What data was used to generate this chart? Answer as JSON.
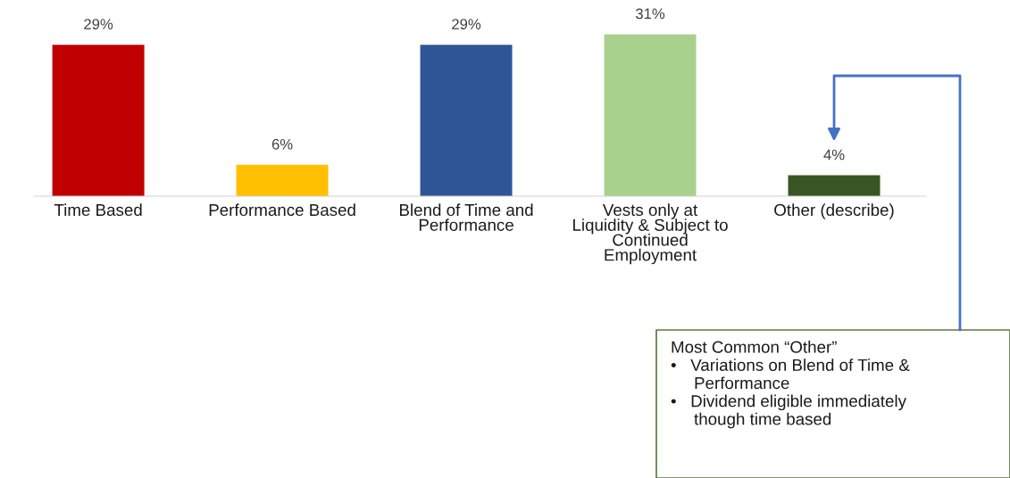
{
  "chart_data": {
    "type": "bar",
    "categories": [
      "Time Based",
      "Performance Based",
      "Blend of Time and\nPerformance",
      "Vests only at\nLiquidity & Subject to\nContinued\nEmployment",
      "Other (describe)"
    ],
    "values": [
      29,
      6,
      29,
      31,
      4
    ],
    "colors": [
      "#c00000",
      "#ffc000",
      "#2f5597",
      "#a9d18e",
      "#375623"
    ],
    "data_labels": true,
    "value_labels": [
      "29%",
      "6%",
      "29%",
      "31%",
      "4%"
    ],
    "grid": false,
    "legend": false,
    "annotations": [
      "Most Common “Other”\n•   Variations on Blend of Time &\n     Performance\n•   Dividend eligible immediately\n     though time based"
    ]
  }
}
